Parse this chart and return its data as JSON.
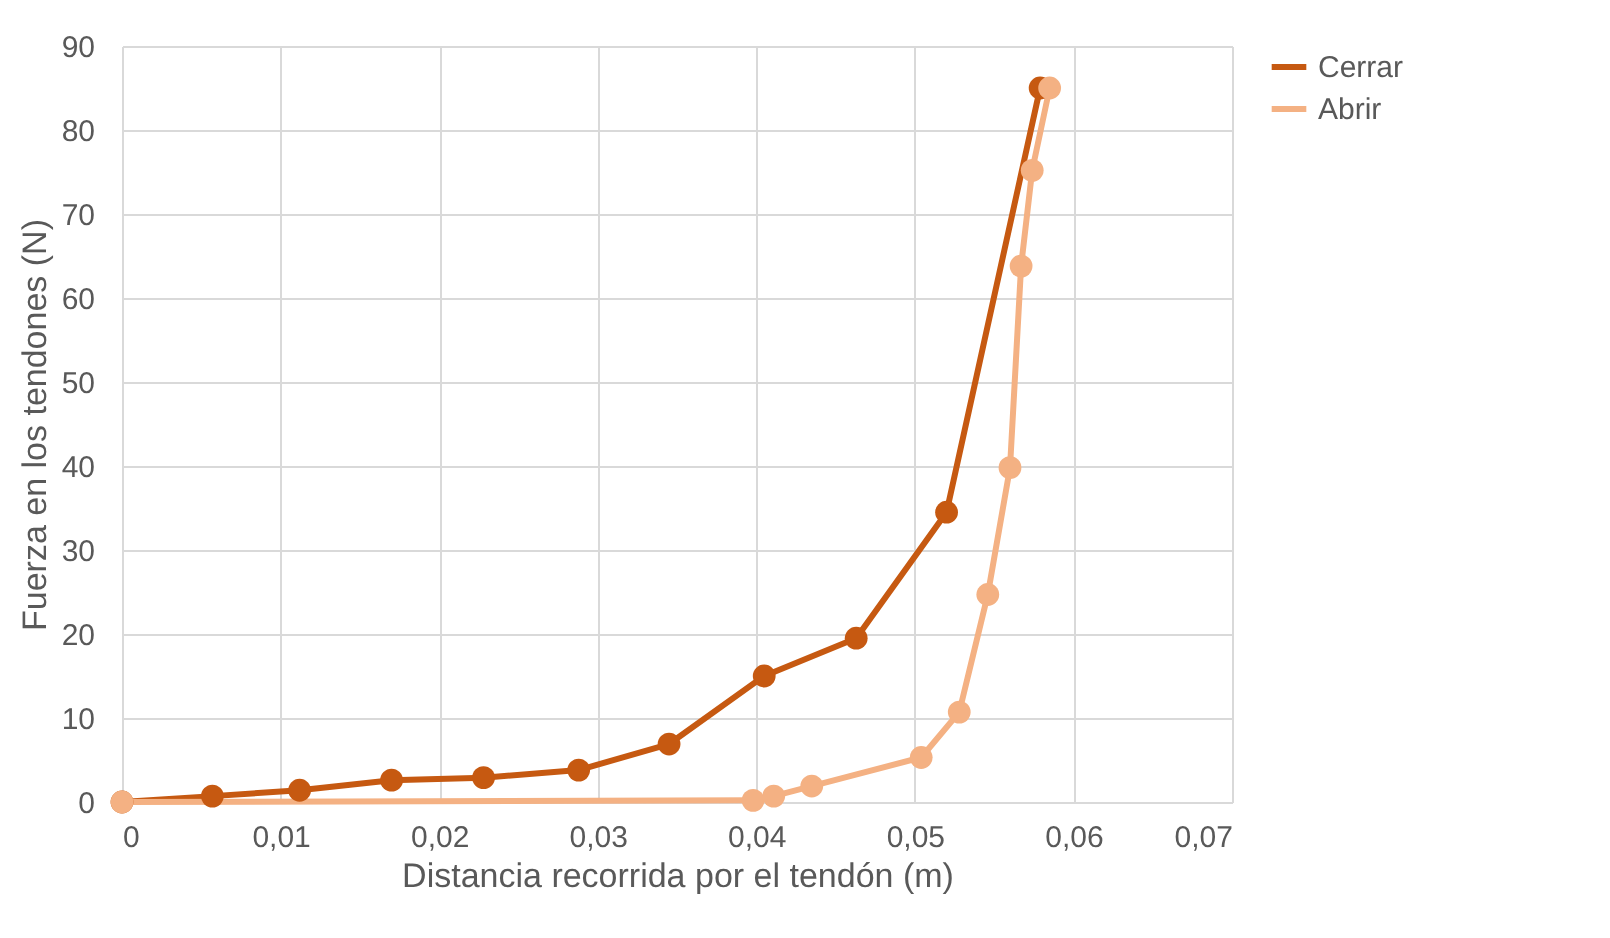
{
  "chart_data": {
    "type": "line",
    "xlabel": "Distancia recorrida por el tendón (m)",
    "ylabel": "Fuerza en los tendones (N)",
    "xlim": [
      0,
      0.07
    ],
    "xticks": [
      0,
      {
        "value": 0.01,
        "label": "0,01"
      },
      {
        "value": 0.02,
        "label": "0,02"
      },
      {
        "value": 0.03,
        "label": "0,03"
      },
      {
        "value": 0.04,
        "label": "0,04"
      },
      {
        "value": 0.05,
        "label": "0,05"
      },
      {
        "value": 0.06,
        "label": "0,06"
      },
      {
        "value": 0.07,
        "label": "0,07"
      }
    ],
    "ylim": [
      0,
      90
    ],
    "yticks": [
      0,
      10,
      20,
      30,
      40,
      50,
      60,
      70,
      80,
      90
    ],
    "grid": true,
    "legend": "right",
    "marker": "circle",
    "line_style": "solid",
    "series": [
      {
        "name": "Cerrar",
        "color": "#c65911",
        "x": [
          0,
          0.0057,
          0.0112,
          0.017,
          0.0228,
          0.0288,
          0.0345,
          0.0405,
          0.0463,
          0.052,
          0.0579
        ],
        "values": [
          0,
          0.7,
          1.4,
          2.6,
          2.9,
          3.8,
          6.9,
          15,
          19.5,
          34.5,
          85
        ]
      },
      {
        "name": "Abrir",
        "color": "#f4b183",
        "x": [
          0,
          0.0398,
          0.0411,
          0.0435,
          0.0504,
          0.0528,
          0.0546,
          0.056,
          0.0567,
          0.0574,
          0.0585
        ],
        "values": [
          0,
          0.2,
          0.7,
          1.9,
          5.3,
          10.7,
          24.7,
          39.8,
          63.8,
          75.2,
          85
        ]
      }
    ]
  }
}
